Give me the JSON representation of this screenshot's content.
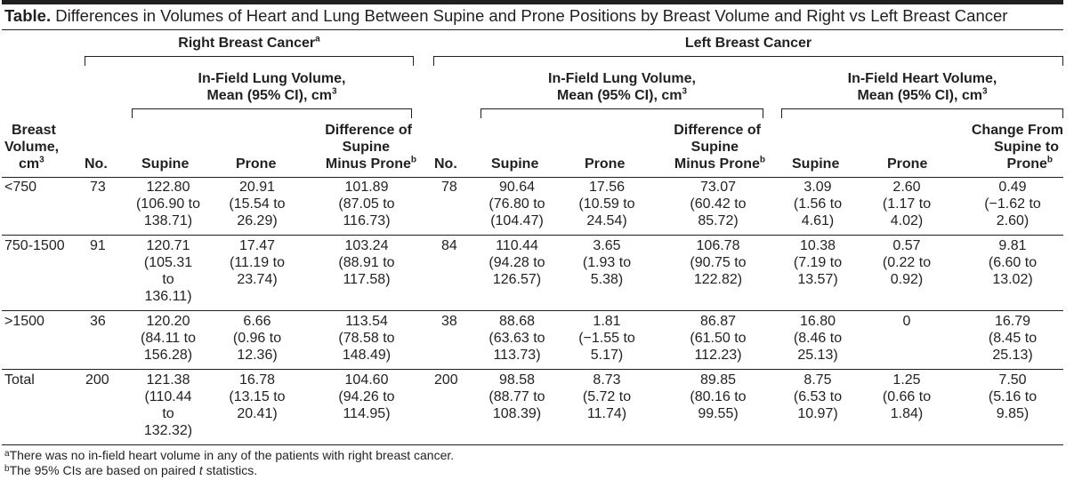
{
  "title": {
    "label": "Table.",
    "text": "Differences in Volumes of Heart and Lung Between Supine and Prone Positions by Breast Volume and Right vs Left Breast Cancer"
  },
  "groups": {
    "right": "Right Breast Cancer",
    "right_sup": "a",
    "left": "Left Breast Cancer"
  },
  "subgroups": {
    "lung_right_1": "In-Field Lung Volume,",
    "lung_right_2": "Mean (95% CI), cm",
    "lung_left_1": "In-Field Lung Volume,",
    "lung_left_2": "Mean (95% CI), cm",
    "heart_left_1": "In-Field Heart Volume,",
    "heart_left_2": "Mean (95% CI), cm",
    "cube": "3"
  },
  "columns": {
    "breast_1": "Breast",
    "breast_2": "Volume,",
    "breast_3": "cm",
    "no": "No.",
    "supine": "Supine",
    "prone": "Prone",
    "diff_1": "Difference of",
    "diff_2": "Supine",
    "diff_3": "Minus Prone",
    "diff_sup": "b",
    "change_1": "Change From",
    "change_2": "Supine to",
    "change_3": "Prone",
    "change_sup": "b"
  },
  "rows": [
    {
      "label": "<750",
      "r_no": "73",
      "r_supine": [
        "122.80",
        "(106.90 to",
        "138.71)"
      ],
      "r_prone": [
        "20.91",
        "(15.54 to",
        "26.29)"
      ],
      "r_diff": [
        "101.89",
        "(87.05 to",
        "116.73)"
      ],
      "l_no": "78",
      "l_supine": [
        "90.64",
        "(76.80 to",
        "(104.47)"
      ],
      "l_prone": [
        "17.56",
        "(10.59 to",
        "24.54)"
      ],
      "l_diff": [
        "73.07",
        "(60.42 to",
        "85.72)"
      ],
      "h_supine": [
        "3.09",
        "(1.56 to",
        "4.61)"
      ],
      "h_prone": [
        "2.60",
        "(1.17 to",
        "4.02)"
      ],
      "h_change": [
        "0.49",
        "(−1.62 to",
        "2.60)"
      ]
    },
    {
      "label": "750-1500",
      "r_no": "91",
      "r_supine": [
        "120.71",
        "(105.31",
        "to",
        "136.11)"
      ],
      "r_prone": [
        "17.47",
        "(11.19 to",
        "23.74)"
      ],
      "r_diff": [
        "103.24",
        "(88.91 to",
        "117.58)"
      ],
      "l_no": "84",
      "l_supine": [
        "110.44",
        "(94.28 to",
        "126.57)"
      ],
      "l_prone": [
        "3.65",
        "(1.93 to",
        "5.38)"
      ],
      "l_diff": [
        "106.78",
        "(90.75 to",
        "122.82)"
      ],
      "h_supine": [
        "10.38",
        "(7.19 to",
        "13.57)"
      ],
      "h_prone": [
        "0.57",
        "(0.22 to",
        "0.92)"
      ],
      "h_change": [
        "9.81",
        "(6.60 to",
        "13.02)"
      ]
    },
    {
      "label": ">1500",
      "r_no": "36",
      "r_supine": [
        "120.20",
        "(84.11 to",
        "156.28)"
      ],
      "r_prone": [
        "6.66",
        "(0.96 to",
        "12.36)"
      ],
      "r_diff": [
        "113.54",
        "(78.58 to",
        "148.49)"
      ],
      "l_no": "38",
      "l_supine": [
        "88.68",
        "(63.63 to",
        "113.73)"
      ],
      "l_prone": [
        "1.81",
        "(−1.55 to",
        "5.17)"
      ],
      "l_diff": [
        "86.87",
        "(61.50 to",
        "112.23)"
      ],
      "h_supine": [
        "16.80",
        "(8.46 to",
        "25.13)"
      ],
      "h_prone": [
        "0"
      ],
      "h_change": [
        "16.79",
        "(8.45 to",
        "25.13)"
      ]
    },
    {
      "label": "Total",
      "r_no": "200",
      "r_supine": [
        "121.38",
        "(110.44",
        "to",
        "132.32)"
      ],
      "r_prone": [
        "16.78",
        "(13.15 to",
        "20.41)"
      ],
      "r_diff": [
        "104.60",
        "(94.26 to",
        "114.95)"
      ],
      "l_no": "200",
      "l_supine": [
        "98.58",
        "(88.77 to",
        "108.39)"
      ],
      "l_prone": [
        "8.73",
        "(5.72 to",
        "11.74)"
      ],
      "l_diff": [
        "89.85",
        "(80.16 to",
        "99.55)"
      ],
      "h_supine": [
        "8.75",
        "(6.53 to",
        "10.97)"
      ],
      "h_prone": [
        "1.25",
        "(0.66 to",
        "1.84)"
      ],
      "h_change": [
        "7.50",
        "(5.16 to",
        "9.85)"
      ]
    }
  ],
  "footnotes": {
    "a_mark": "a",
    "a_text": "There was no in-field heart volume in any of the patients with right breast cancer.",
    "b_mark": "b",
    "b_pre": "The 95% CIs are based on paired ",
    "b_t": "t",
    "b_post": " statistics."
  }
}
